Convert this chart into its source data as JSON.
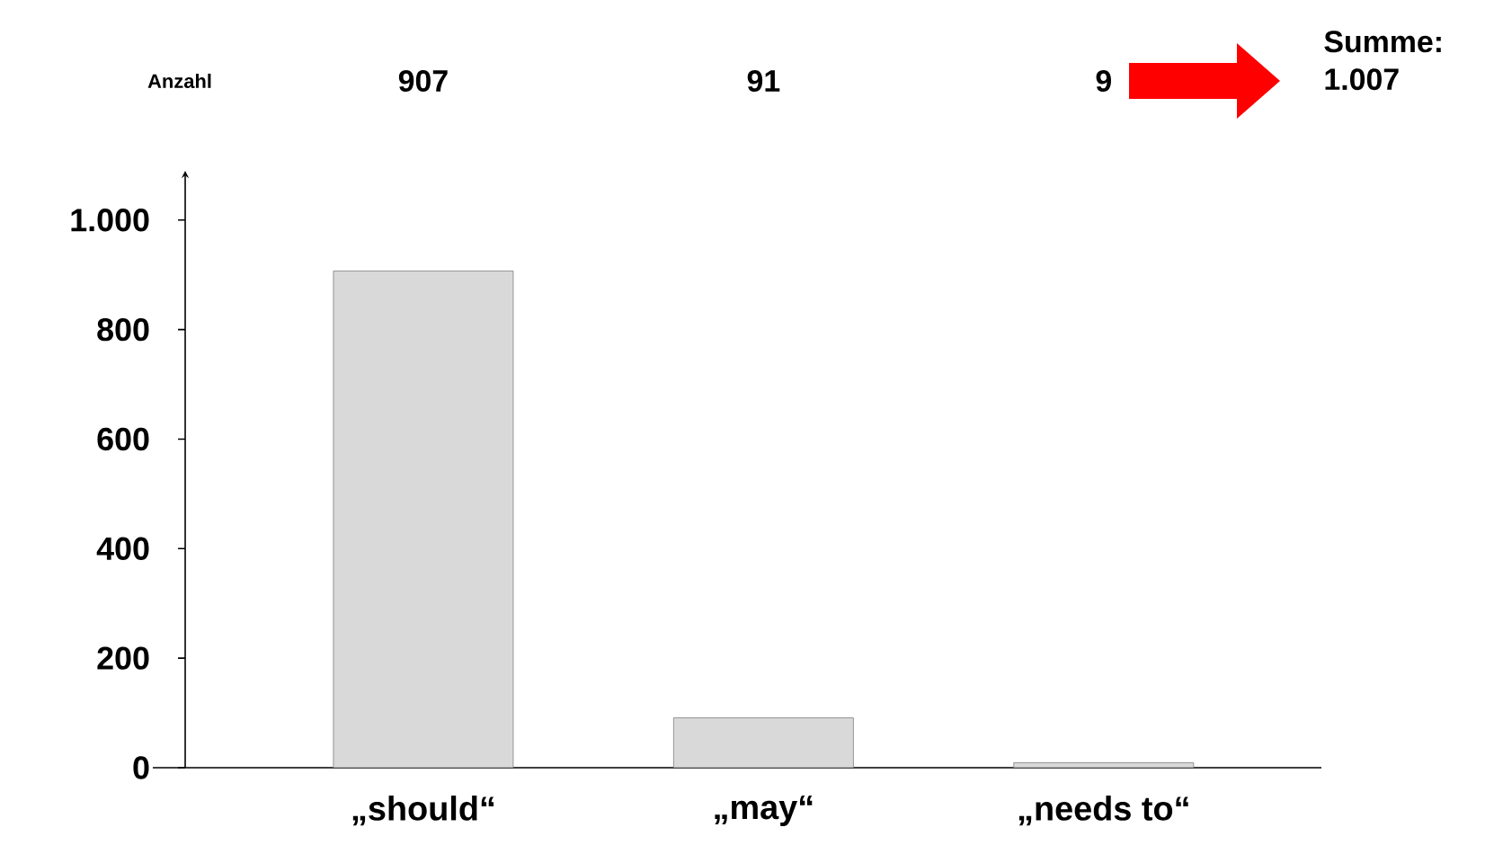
{
  "chart_data": {
    "type": "bar",
    "categories": [
      "„should“",
      "„may“",
      "„needs to“"
    ],
    "values": [
      907,
      91,
      9
    ],
    "color": "#d9d9d9",
    "ylim": [
      0,
      1090
    ],
    "yticks": [
      0,
      200,
      400,
      600,
      800,
      {
        "value": 1000,
        "label": "1.000"
      }
    ],
    "data_labels": true,
    "annotations": [
      "Anzahl",
      "Summe: 1.007"
    ]
  }
}
